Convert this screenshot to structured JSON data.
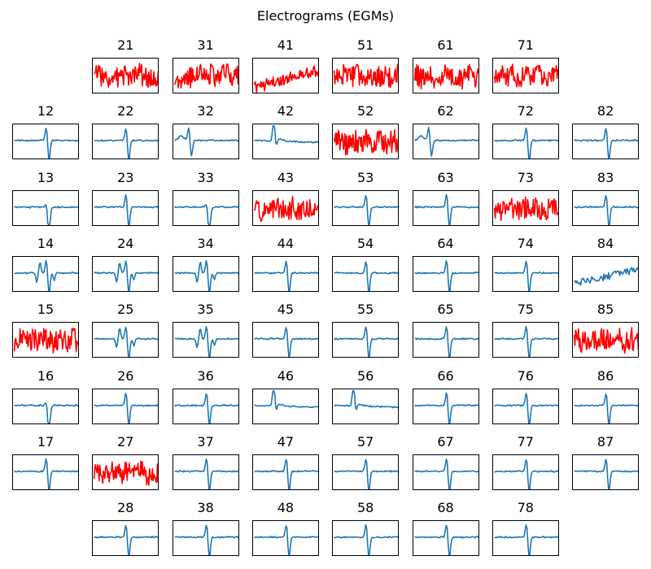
{
  "title": "Electrograms (EGMs)",
  "colors": {
    "normal": "#1f77b4",
    "noisy": "#ff0000"
  },
  "chart_data": {
    "type": "line",
    "title": "Electrograms (EGMs)",
    "xlabel": "",
    "ylabel": "",
    "grid": false,
    "grid_layout": {
      "rows": 8,
      "cols": 8
    },
    "panels": [
      {
        "id": "21",
        "row": 0,
        "col": 1,
        "kind": "noisy"
      },
      {
        "id": "31",
        "row": 0,
        "col": 2,
        "kind": "noisy"
      },
      {
        "id": "41",
        "row": 0,
        "col": 3,
        "kind": "noisy-drift"
      },
      {
        "id": "51",
        "row": 0,
        "col": 4,
        "kind": "noisy"
      },
      {
        "id": "61",
        "row": 0,
        "col": 5,
        "kind": "noisy"
      },
      {
        "id": "71",
        "row": 0,
        "col": 6,
        "kind": "noisy"
      },
      {
        "id": "12",
        "row": 1,
        "col": 0,
        "kind": "biphasic"
      },
      {
        "id": "22",
        "row": 1,
        "col": 1,
        "kind": "biphasic"
      },
      {
        "id": "32",
        "row": 1,
        "col": 2,
        "kind": "early-peak"
      },
      {
        "id": "42",
        "row": 1,
        "col": 3,
        "kind": "tall-peak"
      },
      {
        "id": "52",
        "row": 1,
        "col": 4,
        "kind": "noisy"
      },
      {
        "id": "62",
        "row": 1,
        "col": 5,
        "kind": "early-peak"
      },
      {
        "id": "72",
        "row": 1,
        "col": 6,
        "kind": "biphasic"
      },
      {
        "id": "82",
        "row": 1,
        "col": 7,
        "kind": "biphasic"
      },
      {
        "id": "13",
        "row": 2,
        "col": 0,
        "kind": "negative"
      },
      {
        "id": "23",
        "row": 2,
        "col": 1,
        "kind": "biphasic"
      },
      {
        "id": "33",
        "row": 2,
        "col": 2,
        "kind": "negative"
      },
      {
        "id": "43",
        "row": 2,
        "col": 3,
        "kind": "noisy"
      },
      {
        "id": "53",
        "row": 2,
        "col": 4,
        "kind": "biphasic"
      },
      {
        "id": "63",
        "row": 2,
        "col": 5,
        "kind": "biphasic"
      },
      {
        "id": "73",
        "row": 2,
        "col": 6,
        "kind": "noisy"
      },
      {
        "id": "83",
        "row": 2,
        "col": 7,
        "kind": "biphasic"
      },
      {
        "id": "14",
        "row": 3,
        "col": 0,
        "kind": "fractionated"
      },
      {
        "id": "24",
        "row": 3,
        "col": 1,
        "kind": "fractionated"
      },
      {
        "id": "34",
        "row": 3,
        "col": 2,
        "kind": "fractionated"
      },
      {
        "id": "44",
        "row": 3,
        "col": 3,
        "kind": "biphasic"
      },
      {
        "id": "54",
        "row": 3,
        "col": 4,
        "kind": "biphasic"
      },
      {
        "id": "64",
        "row": 3,
        "col": 5,
        "kind": "biphasic"
      },
      {
        "id": "74",
        "row": 3,
        "col": 6,
        "kind": "biphasic"
      },
      {
        "id": "84",
        "row": 3,
        "col": 7,
        "kind": "drift"
      },
      {
        "id": "15",
        "row": 4,
        "col": 0,
        "kind": "noisy"
      },
      {
        "id": "25",
        "row": 4,
        "col": 1,
        "kind": "fractionated"
      },
      {
        "id": "35",
        "row": 4,
        "col": 2,
        "kind": "fractionated"
      },
      {
        "id": "45",
        "row": 4,
        "col": 3,
        "kind": "biphasic"
      },
      {
        "id": "55",
        "row": 4,
        "col": 4,
        "kind": "biphasic"
      },
      {
        "id": "65",
        "row": 4,
        "col": 5,
        "kind": "biphasic"
      },
      {
        "id": "75",
        "row": 4,
        "col": 6,
        "kind": "biphasic"
      },
      {
        "id": "85",
        "row": 4,
        "col": 7,
        "kind": "noisy"
      },
      {
        "id": "16",
        "row": 5,
        "col": 0,
        "kind": "negative"
      },
      {
        "id": "26",
        "row": 5,
        "col": 1,
        "kind": "biphasic"
      },
      {
        "id": "36",
        "row": 5,
        "col": 2,
        "kind": "biphasic"
      },
      {
        "id": "46",
        "row": 5,
        "col": 3,
        "kind": "tall-peak"
      },
      {
        "id": "56",
        "row": 5,
        "col": 4,
        "kind": "tall-peak"
      },
      {
        "id": "66",
        "row": 5,
        "col": 5,
        "kind": "biphasic"
      },
      {
        "id": "76",
        "row": 5,
        "col": 6,
        "kind": "biphasic"
      },
      {
        "id": "86",
        "row": 5,
        "col": 7,
        "kind": "biphasic"
      },
      {
        "id": "17",
        "row": 6,
        "col": 0,
        "kind": "biphasic"
      },
      {
        "id": "27",
        "row": 6,
        "col": 1,
        "kind": "noisy"
      },
      {
        "id": "37",
        "row": 6,
        "col": 2,
        "kind": "biphasic"
      },
      {
        "id": "47",
        "row": 6,
        "col": 3,
        "kind": "biphasic"
      },
      {
        "id": "57",
        "row": 6,
        "col": 4,
        "kind": "biphasic"
      },
      {
        "id": "67",
        "row": 6,
        "col": 5,
        "kind": "biphasic"
      },
      {
        "id": "77",
        "row": 6,
        "col": 6,
        "kind": "biphasic"
      },
      {
        "id": "87",
        "row": 6,
        "col": 7,
        "kind": "biphasic"
      },
      {
        "id": "28",
        "row": 7,
        "col": 1,
        "kind": "biphasic"
      },
      {
        "id": "38",
        "row": 7,
        "col": 2,
        "kind": "biphasic"
      },
      {
        "id": "48",
        "row": 7,
        "col": 3,
        "kind": "biphasic"
      },
      {
        "id": "58",
        "row": 7,
        "col": 4,
        "kind": "biphasic"
      },
      {
        "id": "68",
        "row": 7,
        "col": 5,
        "kind": "biphasic"
      },
      {
        "id": "78",
        "row": 7,
        "col": 6,
        "kind": "biphasic"
      }
    ]
  }
}
